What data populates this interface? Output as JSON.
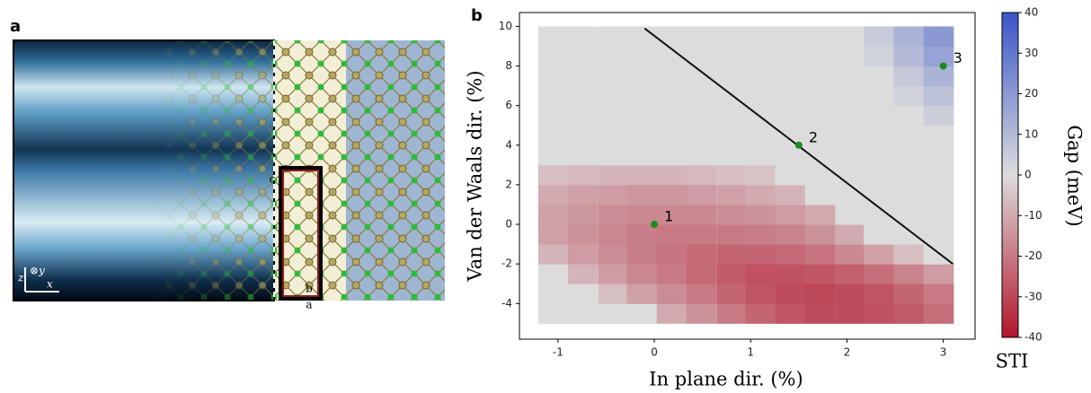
{
  "panel_a": {
    "label": "a",
    "cell_labels": [
      "c",
      "b",
      "a"
    ],
    "axis_labels": [
      "z",
      "x",
      "⊗y"
    ]
  },
  "chart_data": {
    "type": "heatmap",
    "panel_label": "b",
    "x_label": "In plane dir. (%)",
    "y_label": "Van der Waals dir. (%)",
    "colorbar_label": "Gap (meV)",
    "colorbar_note": "STI",
    "xlim": [
      -1.4,
      3.33
    ],
    "ylim": [
      -5.8,
      10.7
    ],
    "xticks": [
      -1,
      0,
      1,
      2,
      3
    ],
    "yticks": [
      -4,
      -2,
      0,
      2,
      4,
      6,
      8,
      10
    ],
    "clim": [
      -40,
      40
    ],
    "cticks": [
      -40,
      -30,
      -20,
      -10,
      0,
      10,
      20,
      30,
      40
    ],
    "cmap": [
      "#b2162b",
      "#dcdcdc",
      "#3a55c8"
    ],
    "x": [
      -1.05,
      -0.74,
      -0.43,
      -0.13,
      0.18,
      0.49,
      0.8,
      1.1,
      1.41,
      1.72,
      2.03,
      2.33,
      2.64,
      2.95
    ],
    "y": [
      -4.5,
      -3.5,
      -2.5,
      -1.5,
      -0.5,
      0.5,
      1.5,
      2.5,
      3.5,
      4.5,
      5.5,
      6.5,
      7.5,
      8.5,
      9.5
    ],
    "z": [
      [
        0,
        0,
        0,
        0,
        -10,
        -15,
        -20,
        -24,
        -27,
        -29,
        -29,
        -28,
        -26,
        -22
      ],
      [
        0,
        0,
        -6,
        -12,
        -16,
        -20,
        -24,
        -27,
        -29,
        -30,
        -29,
        -27,
        -24,
        -20
      ],
      [
        0,
        -8,
        -13,
        -17,
        -20,
        -23,
        -26,
        -28,
        -28,
        -27,
        -25,
        -22,
        -18,
        -13
      ],
      [
        -8,
        -13,
        -16,
        -19,
        -21,
        -23,
        -24,
        -24,
        -23,
        -21,
        -17,
        -12,
        -6,
        0
      ],
      [
        -12,
        -15,
        -17,
        -19,
        -20,
        -20,
        -20,
        -19,
        -18,
        -15,
        -10,
        0,
        0,
        0
      ],
      [
        -12,
        -14,
        -16,
        -17,
        -17,
        -17,
        -16,
        -15,
        -13,
        -10,
        0,
        0,
        0,
        0
      ],
      [
        -10,
        -12,
        -13,
        -14,
        -14,
        -13,
        -12,
        -10,
        -8,
        0,
        0,
        0,
        0,
        0
      ],
      [
        -6,
        -7,
        -8,
        -8,
        -8,
        -7,
        -6,
        -5,
        0,
        0,
        0,
        0,
        0,
        0
      ],
      [
        0,
        0,
        0,
        0,
        0,
        0,
        0,
        0,
        0,
        0,
        0,
        0,
        0,
        0
      ],
      [
        0,
        0,
        0,
        0,
        0,
        0,
        0,
        0,
        0,
        0,
        0,
        0,
        0,
        0
      ],
      [
        0,
        0,
        0,
        0,
        0,
        0,
        0,
        0,
        0,
        0,
        0,
        0,
        0,
        4
      ],
      [
        0,
        0,
        0,
        0,
        0,
        0,
        0,
        0,
        0,
        0,
        0,
        0,
        3,
        8
      ],
      [
        0,
        0,
        0,
        0,
        0,
        0,
        0,
        0,
        0,
        0,
        0,
        0,
        6,
        12
      ],
      [
        0,
        0,
        0,
        0,
        0,
        0,
        0,
        0,
        0,
        0,
        0,
        3,
        10,
        17
      ],
      [
        0,
        0,
        0,
        0,
        0,
        0,
        0,
        0,
        0,
        0,
        0,
        5,
        12,
        20
      ]
    ],
    "line": {
      "x": [
        -0.1,
        3.1
      ],
      "y": [
        9.9,
        -2
      ],
      "color": "#111111"
    },
    "points": {
      "x": [
        0,
        1.5,
        3
      ],
      "y": [
        0,
        4,
        8
      ],
      "labels": [
        "1",
        "2",
        "3"
      ],
      "color": "#1a8a1a"
    }
  }
}
